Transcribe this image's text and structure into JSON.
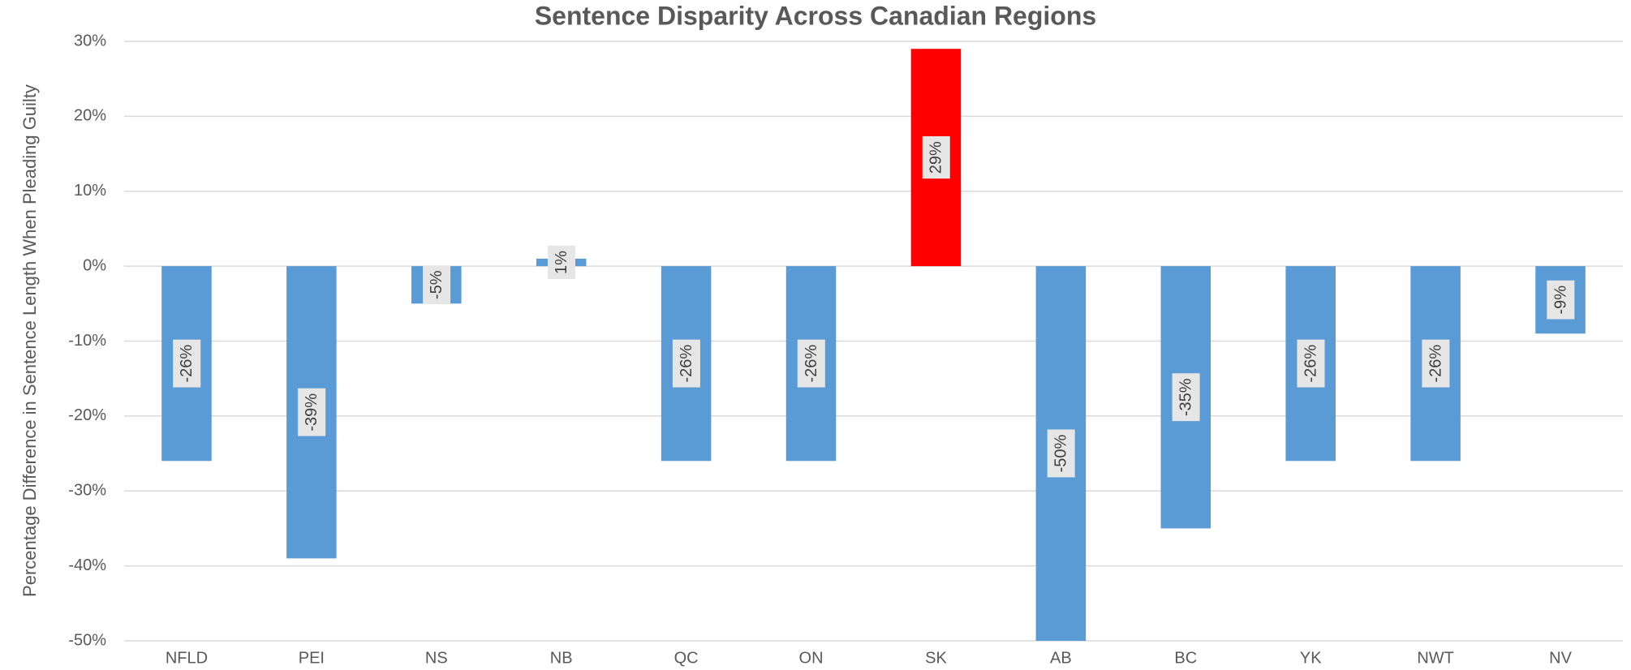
{
  "chart_data": {
    "type": "bar",
    "title": "Sentence Disparity Across Canadian Regions",
    "y_label": "Percentage Difference in Sentence Length When Pleading Guilty",
    "categories": [
      "NFLD",
      "PEI",
      "NS",
      "NB",
      "QC",
      "ON",
      "SK",
      "AB",
      "BC",
      "YK",
      "NWT",
      "NV"
    ],
    "values": [
      -26,
      -39,
      -5,
      1,
      -26,
      -26,
      29,
      -50,
      -35,
      -26,
      -26,
      -9
    ],
    "value_labels": [
      "-26%",
      "-39%",
      "-5%",
      "1%",
      "-26%",
      "-26%",
      "29%",
      "-50%",
      "-35%",
      "-26%",
      "-26%",
      "-9%"
    ],
    "colors": [
      "#5b9bd5",
      "#5b9bd5",
      "#5b9bd5",
      "#5b9bd5",
      "#5b9bd5",
      "#5b9bd5",
      "#ff0000",
      "#5b9bd5",
      "#5b9bd5",
      "#5b9bd5",
      "#5b9bd5",
      "#5b9bd5"
    ],
    "ylim": [
      -50,
      30
    ],
    "yticks": [
      {
        "value": -50,
        "label": "-50%"
      },
      {
        "value": -40,
        "label": "-40%"
      },
      {
        "value": -30,
        "label": "-30%"
      },
      {
        "value": -20,
        "label": "-20%"
      },
      {
        "value": -10,
        "label": "-10%"
      },
      {
        "value": 0,
        "label": "0%"
      },
      {
        "value": 10,
        "label": "10%"
      },
      {
        "value": 20,
        "label": "20%"
      },
      {
        "value": 30,
        "label": "30%"
      }
    ],
    "grid": true
  }
}
